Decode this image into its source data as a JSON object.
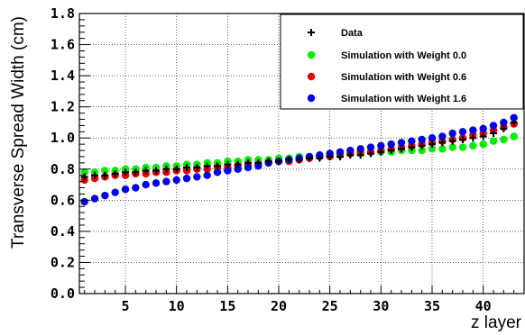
{
  "chart_data": {
    "type": "scatter",
    "xlabel": "z layer",
    "ylabel": "Transverse Spread Width (cm)",
    "xlim": [
      0.5,
      44
    ],
    "ylim": [
      0,
      1.8
    ],
    "xticks": [
      5,
      10,
      15,
      20,
      25,
      30,
      35,
      40
    ],
    "yticks": [
      "0.0",
      "0.2",
      "0.4",
      "0.6",
      "0.8",
      "1.0",
      "1.2",
      "1.4",
      "1.6",
      "1.8"
    ],
    "grid": true,
    "legend_position": "top-right",
    "x": [
      1,
      2,
      3,
      4,
      5,
      6,
      7,
      8,
      9,
      10,
      11,
      12,
      13,
      14,
      15,
      16,
      17,
      18,
      19,
      20,
      21,
      22,
      23,
      24,
      25,
      26,
      27,
      28,
      29,
      30,
      31,
      32,
      33,
      34,
      35,
      36,
      37,
      38,
      39,
      40,
      41,
      42,
      43
    ],
    "series": [
      {
        "name": "Data",
        "marker": "plus",
        "color": "#000000",
        "values": [
          0.75,
          0.76,
          0.76,
          0.77,
          0.78,
          0.78,
          0.79,
          0.79,
          0.8,
          0.8,
          0.81,
          0.81,
          0.82,
          0.82,
          0.83,
          0.83,
          0.84,
          0.84,
          0.85,
          0.85,
          0.86,
          0.86,
          0.87,
          0.87,
          0.88,
          0.88,
          0.89,
          0.89,
          0.9,
          0.91,
          0.92,
          0.93,
          0.94,
          0.95,
          0.96,
          0.97,
          0.98,
          0.99,
          1.0,
          1.01,
          1.03,
          1.06,
          1.1
        ]
      },
      {
        "name": "Simulation with Weight 0.0",
        "marker": "circle",
        "color": "#00ee00",
        "values": [
          0.78,
          0.78,
          0.79,
          0.79,
          0.8,
          0.8,
          0.81,
          0.81,
          0.82,
          0.82,
          0.83,
          0.83,
          0.84,
          0.84,
          0.85,
          0.85,
          0.86,
          0.86,
          0.86,
          0.87,
          0.87,
          0.88,
          0.88,
          0.89,
          0.89,
          0.89,
          0.9,
          0.9,
          0.91,
          0.91,
          0.91,
          0.92,
          0.92,
          0.92,
          0.93,
          0.93,
          0.94,
          0.94,
          0.95,
          0.96,
          0.98,
          0.99,
          1.01
        ]
      },
      {
        "name": "Simulation with Weight 0.6",
        "marker": "circle",
        "color": "#ee0000",
        "values": [
          0.73,
          0.74,
          0.75,
          0.76,
          0.76,
          0.77,
          0.77,
          0.78,
          0.78,
          0.79,
          0.79,
          0.8,
          0.8,
          0.81,
          0.81,
          0.82,
          0.83,
          0.83,
          0.84,
          0.85,
          0.85,
          0.86,
          0.87,
          0.88,
          0.88,
          0.89,
          0.9,
          0.91,
          0.91,
          0.92,
          0.93,
          0.94,
          0.95,
          0.96,
          0.97,
          0.98,
          0.99,
          1.0,
          1.02,
          1.03,
          1.05,
          1.07,
          1.09
        ]
      },
      {
        "name": "Simulation with Weight 1.6",
        "marker": "circle",
        "color": "#0000ee",
        "values": [
          0.59,
          0.61,
          0.63,
          0.65,
          0.67,
          0.68,
          0.7,
          0.71,
          0.72,
          0.73,
          0.74,
          0.75,
          0.76,
          0.78,
          0.79,
          0.8,
          0.81,
          0.82,
          0.84,
          0.85,
          0.86,
          0.87,
          0.88,
          0.89,
          0.9,
          0.91,
          0.92,
          0.93,
          0.94,
          0.95,
          0.96,
          0.97,
          0.98,
          0.99,
          1.0,
          1.01,
          1.03,
          1.04,
          1.05,
          1.06,
          1.08,
          1.1,
          1.13
        ]
      }
    ]
  }
}
